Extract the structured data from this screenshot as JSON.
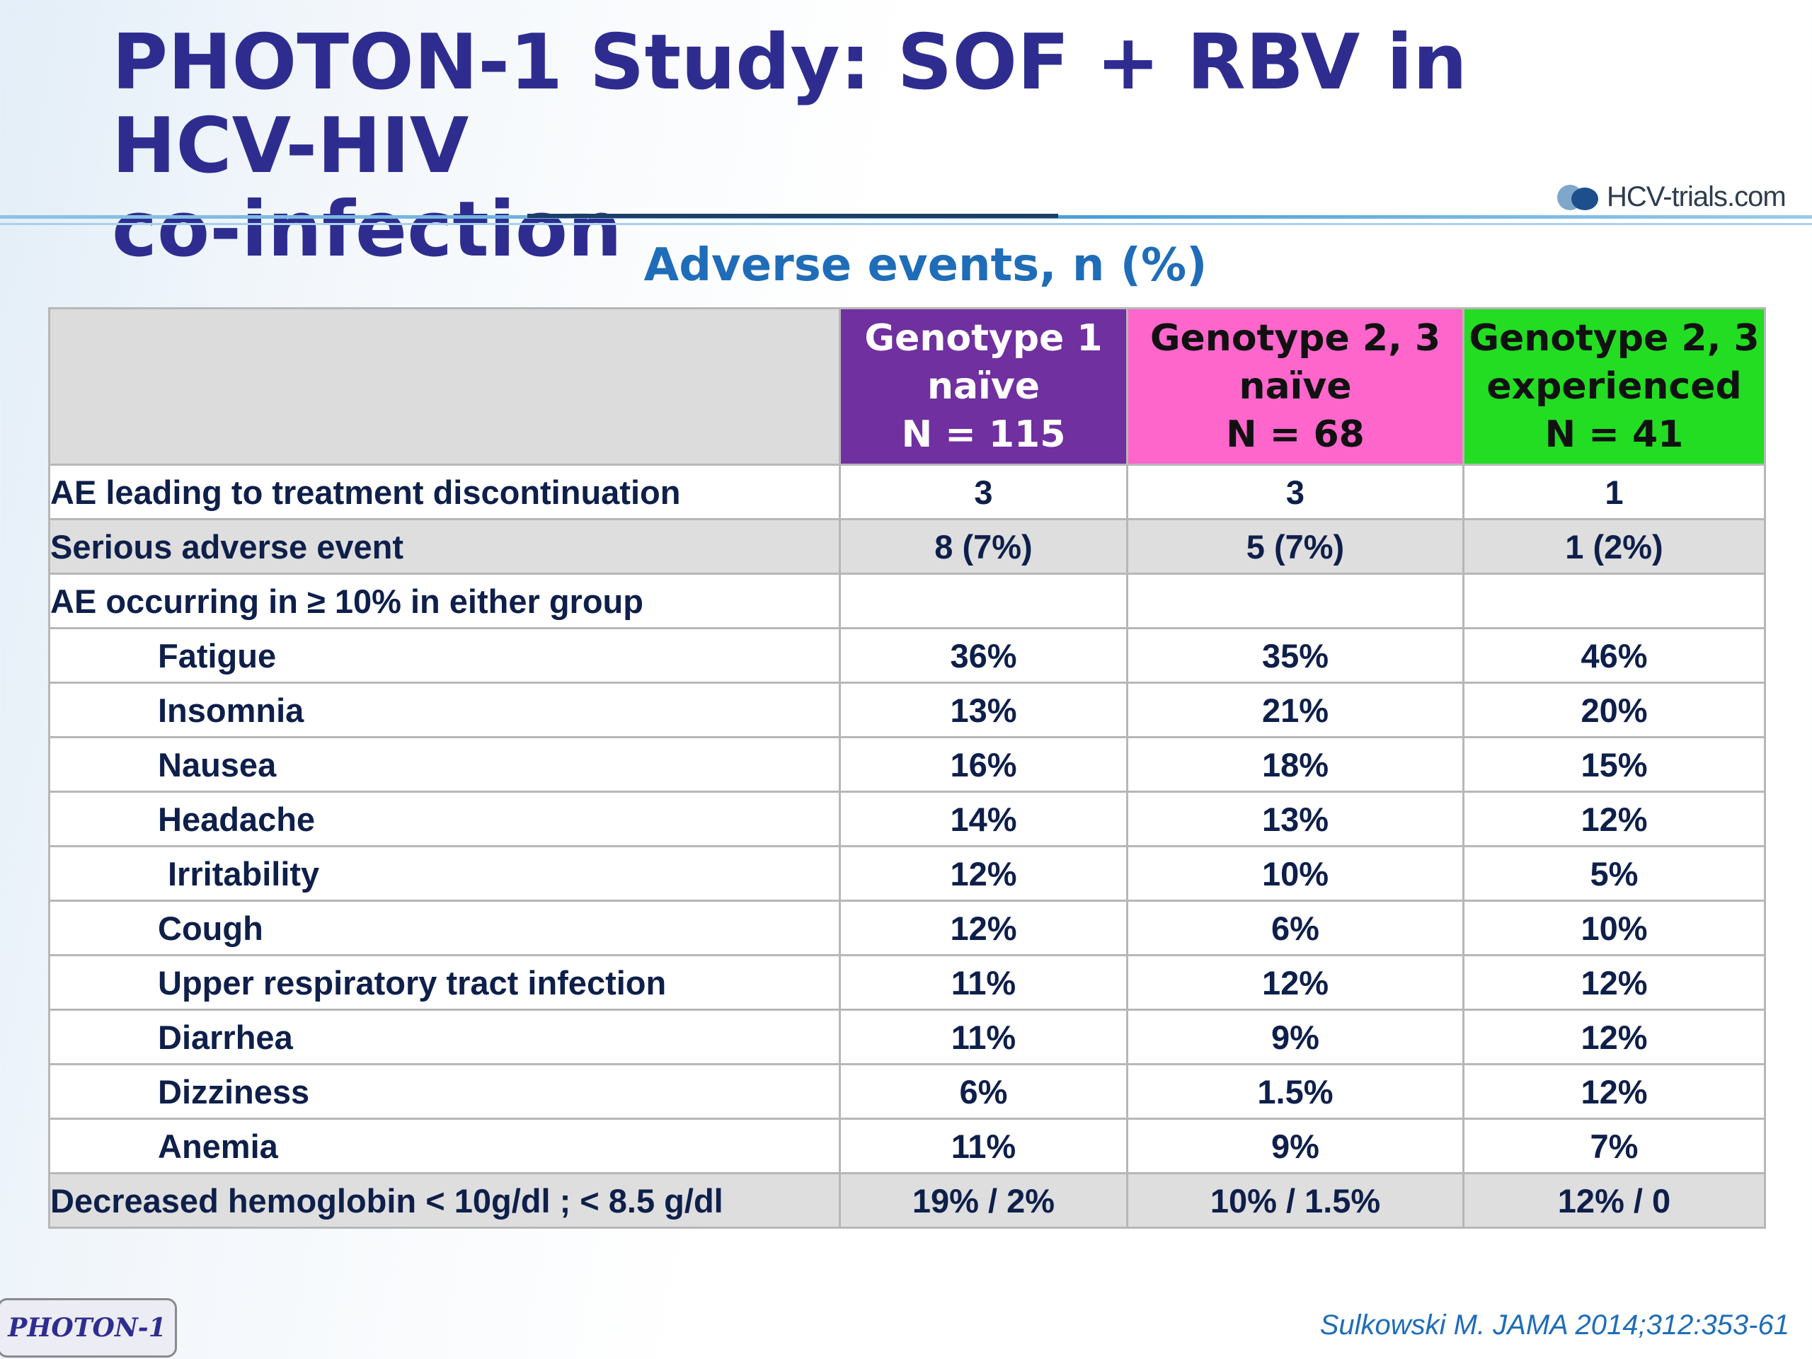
{
  "slide": {
    "title_line1": "PHOTON-1 Study: SOF + RBV in HCV-HIV",
    "title_line2": "co-infection",
    "logo_text": "HCV-trials.com",
    "logo_icon": "pills-icon",
    "subtitle": "Adverse events, n (%)",
    "study_tag": "PHOTON-1",
    "reference": "Sulkowski M. JAMA 2014;312:353-61",
    "colors": {
      "title": "#2e2d8f",
      "subtitle": "#1f6db8",
      "genotype1": "#7030a0",
      "genotype23_naive": "#ff66cc",
      "genotype23_experienced": "#22dd22"
    }
  },
  "table": {
    "columns": [
      {
        "line1": "Genotype 1",
        "line2": "naïve",
        "line3": "N = 115"
      },
      {
        "line1": "Genotype 2, 3",
        "line2": "naïve",
        "line3": "N = 68"
      },
      {
        "line1": "Genotype 2, 3",
        "line2": "experienced",
        "line3": "N = 41"
      }
    ],
    "rows": [
      {
        "label": "AE leading to treatment discontinuation",
        "values": [
          "3",
          "3",
          "1"
        ]
      },
      {
        "label": "Serious adverse event",
        "values": [
          "8 (7%)",
          "5 (7%)",
          "1 (2%)"
        ]
      },
      {
        "label": "AE occurring in ≥ 10% in either group",
        "values": [
          "",
          "",
          ""
        ]
      },
      {
        "label": "Fatigue",
        "values": [
          "36%",
          "35%",
          "46%"
        ]
      },
      {
        "label": "Insomnia",
        "values": [
          "13%",
          "21%",
          "20%"
        ]
      },
      {
        "label": "Nausea",
        "values": [
          "16%",
          "18%",
          "15%"
        ]
      },
      {
        "label": "Headache",
        "values": [
          "14%",
          "13%",
          "12%"
        ]
      },
      {
        "label": "Irritability",
        "values": [
          "12%",
          "10%",
          "5%"
        ]
      },
      {
        "label": "Cough",
        "values": [
          "12%",
          "6%",
          "10%"
        ]
      },
      {
        "label": "Upper respiratory tract infection",
        "values": [
          "11%",
          "12%",
          "12%"
        ]
      },
      {
        "label": "Diarrhea",
        "values": [
          "11%",
          "9%",
          "12%"
        ]
      },
      {
        "label": "Dizziness",
        "values": [
          "6%",
          "1.5%",
          "12%"
        ]
      },
      {
        "label": "Anemia",
        "values": [
          "11%",
          "9%",
          "7%"
        ]
      },
      {
        "label": "Decreased hemoglobin < 10g/dl ; < 8.5 g/dl",
        "values": [
          "19% / 2%",
          "10% / 1.5%",
          "12% / 0"
        ]
      }
    ]
  }
}
